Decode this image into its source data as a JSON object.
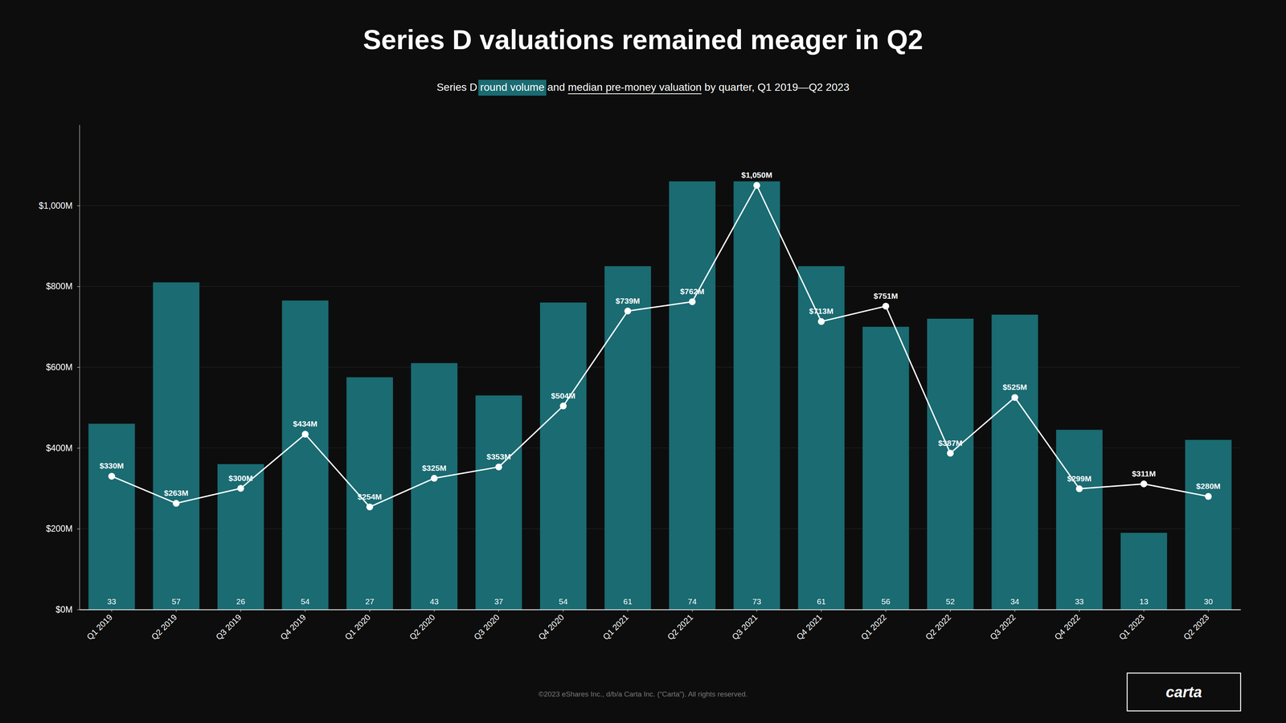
{
  "chart_data": {
    "type": "bar",
    "title": "Series D valuations remained meager in Q2",
    "subtitle": [
      "Series D ",
      "round volume",
      " and ",
      "median pre-money valuation",
      " by quarter, Q1 2019—Q2 2023"
    ],
    "footer": "©2023 eShares Inc., d/b/a Carta Inc. (“Carta”). All rights reserved.",
    "logo": "carta",
    "categories": [
      "Q1 2019",
      "Q2 2019",
      "Q3 2019",
      "Q4 2019",
      "Q1 2020",
      "Q2 2020",
      "Q3 2020",
      "Q4 2020",
      "Q1 2021",
      "Q2 2021",
      "Q3 2021",
      "Q4 2021",
      "Q1 2022",
      "Q2 2022",
      "Q3 2022",
      "Q4 2022",
      "Q1 2023",
      "Q2 2023"
    ],
    "series": [
      {
        "type": "bar",
        "color": "#1a6b72",
        "values": [
          460,
          810,
          360,
          765,
          575,
          610,
          530,
          760,
          850,
          1060,
          1060,
          850,
          700,
          720,
          730,
          445,
          190,
          420
        ],
        "counts": [
          33,
          57,
          26,
          54,
          27,
          43,
          37,
          54,
          61,
          74,
          73,
          61,
          56,
          52,
          34,
          33,
          13,
          30
        ]
      },
      {
        "type": "line",
        "color": "#ffffff",
        "marker": "circle",
        "data_labels": true,
        "values": [
          330,
          263,
          300,
          434,
          254,
          325,
          353,
          504,
          739,
          762,
          1050,
          713,
          751,
          387,
          525,
          299,
          311,
          280
        ],
        "value_labels": [
          "$330M",
          "$263M",
          "$300M",
          "$434M",
          "$254M",
          "$325M",
          "$353M",
          "$504M",
          "$739M",
          "$762M",
          "$1,050M",
          "$713M",
          "$751M",
          "$387M",
          "$525M",
          "$299M",
          "$311M",
          "$280M"
        ]
      }
    ],
    "ylim": [
      0,
      1200
    ],
    "yticks": [
      {
        "value": 0,
        "label": "$0M"
      },
      {
        "value": 200,
        "label": "$200M"
      },
      {
        "value": 400,
        "label": "$400M"
      },
      {
        "value": 600,
        "label": "$600M"
      },
      {
        "value": 800,
        "label": "$800M"
      },
      {
        "value": 1000,
        "label": "$1,000M"
      }
    ],
    "grid": true
  }
}
